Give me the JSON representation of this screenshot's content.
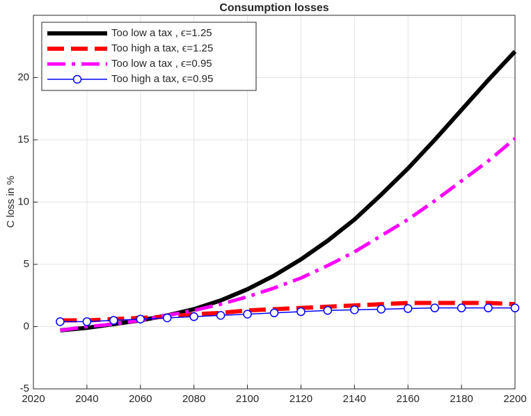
{
  "chart_data": {
    "type": "line",
    "title": "Consumption losses",
    "y_label": "C loss in %",
    "x": [
      2030,
      2040,
      2050,
      2060,
      2070,
      2080,
      2090,
      2100,
      2110,
      2120,
      2130,
      2140,
      2150,
      2160,
      2170,
      2180,
      2190,
      2200
    ],
    "series": [
      {
        "name": "Too low a tax , ϵ=1.25",
        "color": "#000000",
        "line_width": 6,
        "dash": "solid",
        "marker": "none",
        "values": [
          -0.3,
          -0.1,
          0.2,
          0.5,
          0.9,
          1.4,
          2.1,
          3.0,
          4.1,
          5.4,
          6.9,
          8.6,
          10.6,
          12.7,
          15.0,
          17.4,
          19.8,
          22.1
        ]
      },
      {
        "name": "Too high a tax, ϵ=1.25",
        "color": "#ff0000",
        "line_width": 6,
        "dash": "dashed",
        "marker": "none",
        "values": [
          0.5,
          0.5,
          0.6,
          0.7,
          0.8,
          1.0,
          1.1,
          1.3,
          1.4,
          1.5,
          1.6,
          1.7,
          1.8,
          1.9,
          1.9,
          1.9,
          1.9,
          1.8
        ]
      },
      {
        "name": "Too low a tax , ϵ=0.95",
        "color": "#ff00ff",
        "line_width": 5,
        "dash": "dashdot",
        "marker": "none",
        "values": [
          -0.3,
          0.0,
          0.2,
          0.5,
          0.9,
          1.3,
          1.8,
          2.4,
          3.1,
          3.9,
          4.9,
          6.0,
          7.3,
          8.6,
          10.1,
          11.7,
          13.3,
          15.1
        ]
      },
      {
        "name": "Too high a tax, ϵ=0.95",
        "color": "#0000ff",
        "line_width": 1.5,
        "dash": "solid",
        "marker": "circle",
        "values": [
          0.4,
          0.4,
          0.5,
          0.6,
          0.7,
          0.8,
          0.9,
          1.0,
          1.1,
          1.2,
          1.3,
          1.35,
          1.4,
          1.45,
          1.5,
          1.5,
          1.5,
          1.5
        ]
      }
    ],
    "xlim": [
      2020,
      2200
    ],
    "xticks": [
      2020,
      2040,
      2060,
      2080,
      2100,
      2120,
      2140,
      2160,
      2180,
      2200
    ],
    "ylim": [
      -5,
      25
    ],
    "yticks": [
      -5,
      0,
      5,
      10,
      15,
      20
    ],
    "grid": true,
    "legend_position": "northwest"
  }
}
